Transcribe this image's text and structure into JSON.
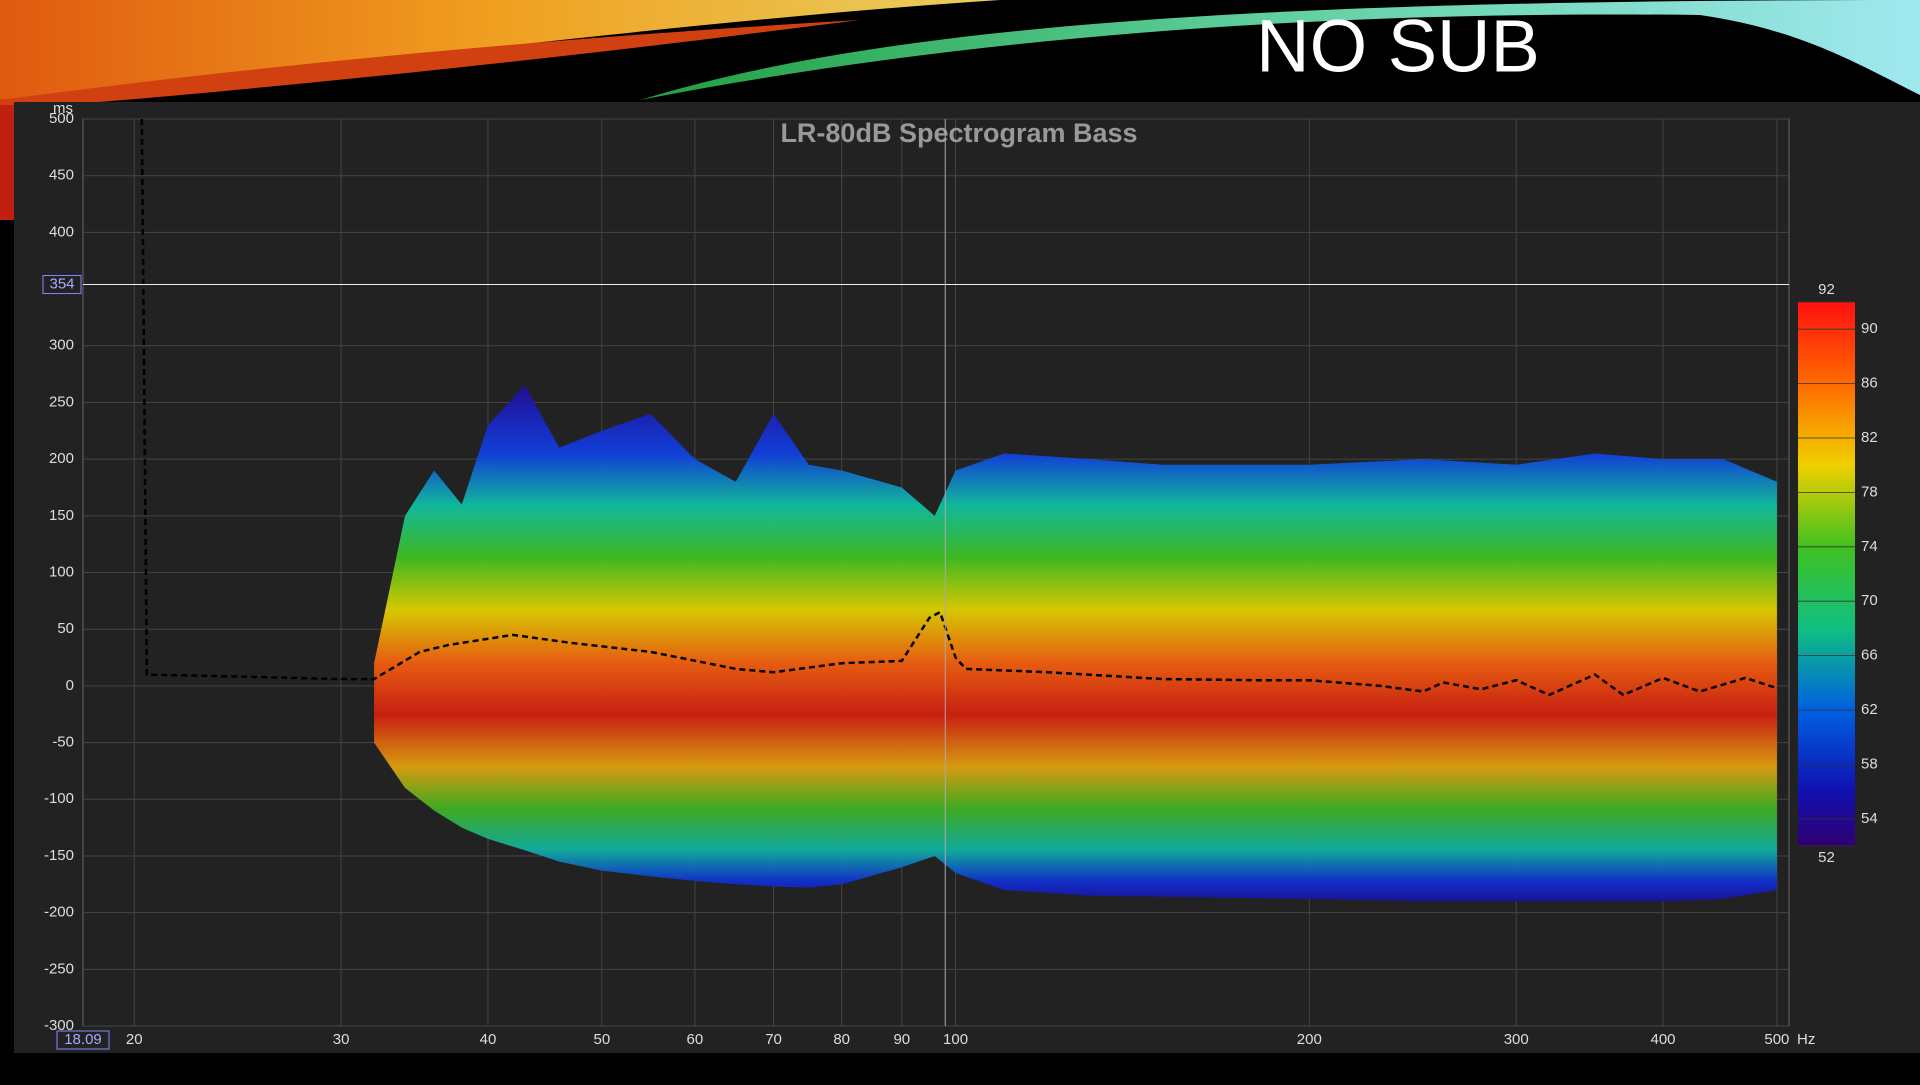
{
  "slide_title": "NO SUB",
  "chart_data": {
    "type": "spectrogram",
    "title": "LR-80dB Spectrogram Bass",
    "x_unit": "Hz",
    "y_unit": "ms",
    "xscale": "log",
    "grid": true,
    "xlim": [
      18.09,
      512
    ],
    "xticks": [
      20,
      30,
      40,
      50,
      60,
      70,
      80,
      90,
      100,
      200,
      300,
      400,
      500
    ],
    "ylim": [
      -300,
      500
    ],
    "yticks": [
      -300,
      -250,
      -200,
      -150,
      -100,
      -50,
      0,
      50,
      100,
      150,
      200,
      250,
      300,
      400,
      450,
      500
    ],
    "cursor_y": 354,
    "cursor_x_readout": 18.09,
    "crosshair_x": 98,
    "colorbar": {
      "lim": [
        52,
        92
      ],
      "ticks": [
        52,
        54,
        58,
        62,
        66,
        70,
        74,
        78,
        82,
        86,
        90,
        92
      ]
    },
    "envelope": {
      "x": [
        32,
        34,
        36,
        38,
        40,
        43,
        46,
        50,
        55,
        60,
        65,
        70,
        75,
        80,
        90,
        96,
        100,
        110,
        130,
        150,
        200,
        250,
        300,
        350,
        400,
        450,
        500
      ],
      "top": [
        20,
        150,
        190,
        160,
        230,
        265,
        210,
        225,
        240,
        200,
        180,
        240,
        195,
        190,
        175,
        150,
        190,
        205,
        200,
        195,
        195,
        200,
        195,
        205,
        200,
        200,
        180
      ],
      "bottom": [
        -50,
        -90,
        -110,
        -125,
        -135,
        -145,
        -155,
        -163,
        -168,
        -172,
        -175,
        -177,
        -178,
        -175,
        -160,
        -150,
        -165,
        -180,
        -185,
        -186,
        -188,
        -190,
        -190,
        -190,
        -190,
        -188,
        -180
      ]
    },
    "line": {
      "x": [
        20.3,
        20.5,
        25,
        30,
        32,
        35,
        37,
        42,
        47,
        55,
        65,
        70,
        80,
        90,
        95,
        97,
        100,
        102,
        120,
        150,
        180,
        200,
        230,
        250,
        260,
        280,
        300,
        320,
        350,
        370,
        400,
        430,
        470,
        500
      ],
      "values": [
        500,
        10,
        8,
        6,
        6,
        30,
        36,
        45,
        38,
        30,
        15,
        12,
        20,
        22,
        60,
        65,
        25,
        15,
        12,
        6,
        5,
        5,
        0,
        -5,
        3,
        -3,
        5,
        -8,
        10,
        -8,
        7,
        -5,
        7,
        -2
      ]
    }
  }
}
